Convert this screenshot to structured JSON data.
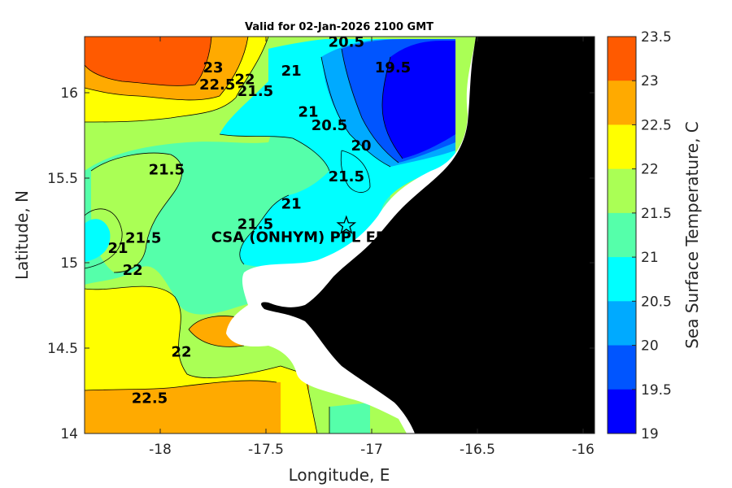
{
  "title": "Valid for 02-Jan-2026 2100 GMT",
  "xlabel": "Longitude, E",
  "ylabel": "Latitude, N",
  "x_ticks": [
    "-18",
    "-17.5",
    "-17",
    "-16.5",
    "-16"
  ],
  "y_ticks": [
    "16",
    "15.5",
    "15",
    "14.5",
    "14"
  ],
  "colorbar": {
    "label": "Sea Surface Temperature, C",
    "ticks": [
      "23.5",
      "23",
      "22.5",
      "22",
      "21.5",
      "21",
      "20.5",
      "20",
      "19.5",
      "19"
    ],
    "colors": [
      "#ff5a00",
      "#ffaa00",
      "#ffff00",
      "#aaff55",
      "#55ffaa",
      "#00ffff",
      "#00aaff",
      "#0055ff",
      "#0000ff"
    ]
  },
  "land_color": "#000000",
  "site": {
    "label": "CSA (ONHYM) PPL ER",
    "lon": -17.12,
    "lat": 15.22,
    "marker": "star-outline-icon"
  },
  "contour_labels": [
    {
      "text": "23",
      "lon": -17.75,
      "lat": 16.12
    },
    {
      "text": "22.5",
      "lon": -17.73,
      "lat": 16.02
    },
    {
      "text": "22",
      "lon": -17.6,
      "lat": 16.05
    },
    {
      "text": "21.5",
      "lon": -17.55,
      "lat": 15.98
    },
    {
      "text": "21",
      "lon": -17.38,
      "lat": 16.1
    },
    {
      "text": "20.5",
      "lon": -17.12,
      "lat": 16.27
    },
    {
      "text": "19.5",
      "lon": -16.9,
      "lat": 16.12
    },
    {
      "text": "21",
      "lon": -17.3,
      "lat": 15.86
    },
    {
      "text": "20.5",
      "lon": -17.2,
      "lat": 15.78
    },
    {
      "text": "20",
      "lon": -17.05,
      "lat": 15.66
    },
    {
      "text": "21.5",
      "lon": -17.97,
      "lat": 15.52
    },
    {
      "text": "21.5",
      "lon": -17.12,
      "lat": 15.48
    },
    {
      "text": "21",
      "lon": -17.38,
      "lat": 15.32
    },
    {
      "text": "21.5",
      "lon": -17.55,
      "lat": 15.2
    },
    {
      "text": "21",
      "lon": -18.2,
      "lat": 15.06
    },
    {
      "text": "21.5",
      "lon": -18.08,
      "lat": 15.12
    },
    {
      "text": "22",
      "lon": -18.13,
      "lat": 14.93
    },
    {
      "text": "22",
      "lon": -17.9,
      "lat": 14.45
    },
    {
      "text": "22.5",
      "lon": -18.05,
      "lat": 14.18
    }
  ],
  "chart_data": {
    "type": "heatmap",
    "title": "Valid for 02-Jan-2026 2100 GMT",
    "xlabel": "Longitude, E",
    "ylabel": "Latitude, N",
    "xlim": [
      -18.35,
      -15.92
    ],
    "ylim": [
      14.0,
      16.33
    ],
    "value_label": "Sea Surface Temperature, C",
    "value_range": [
      19,
      23.5
    ],
    "levels": [
      19,
      19.5,
      20,
      20.5,
      21,
      21.5,
      22,
      22.5,
      23,
      23.5
    ],
    "grid": false,
    "legend": "colorbar-right"
  }
}
